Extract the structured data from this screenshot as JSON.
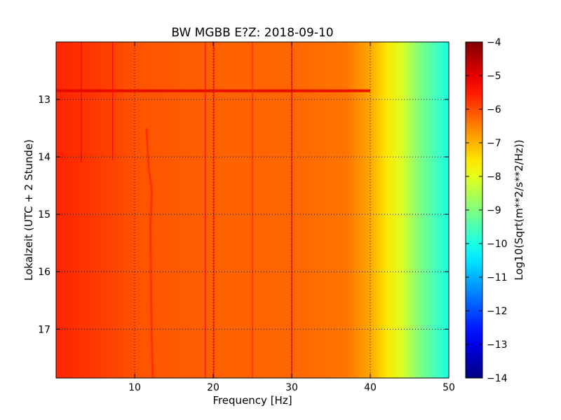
{
  "chart_data": {
    "type": "heatmap",
    "title": "BW MGBB E?Z: 2018-09-10",
    "xlabel": "Frequency [Hz]",
    "ylabel": "Lokalzeit (UTC + 2 Stunde)",
    "xlim": [
      0,
      50
    ],
    "ylim": [
      12.0,
      17.85
    ],
    "y_inverted": true,
    "x_ticks": [
      10,
      20,
      30,
      40,
      50
    ],
    "x_tick_labels": [
      "10",
      "20",
      "30",
      "40",
      "50"
    ],
    "y_ticks": [
      13,
      14,
      15,
      16,
      17
    ],
    "y_tick_labels": [
      "13",
      "14",
      "15",
      "16",
      "17"
    ],
    "grid": true,
    "colormap": "jet",
    "colorbar": {
      "label": "Log10(Sqrt(m**2/s**2/Hz))",
      "range": [
        -14,
        -4
      ],
      "ticks": [
        -4,
        -5,
        -6,
        -7,
        -8,
        -9,
        -10,
        -11,
        -12,
        -13,
        -14
      ],
      "tick_labels": [
        "−4",
        "−5",
        "−6",
        "−7",
        "−8",
        "−9",
        "−10",
        "−11",
        "−12",
        "−13",
        "−14"
      ]
    },
    "spectrum_profile": [
      {
        "freq": 0,
        "value": -5.6
      },
      {
        "freq": 5,
        "value": -5.8
      },
      {
        "freq": 10,
        "value": -6.05
      },
      {
        "freq": 20,
        "value": -6.2
      },
      {
        "freq": 30,
        "value": -6.25
      },
      {
        "freq": 37,
        "value": -6.4
      },
      {
        "freq": 40,
        "value": -6.9
      },
      {
        "freq": 42,
        "value": -7.5
      },
      {
        "freq": 44,
        "value": -8.1
      },
      {
        "freq": 46,
        "value": -8.9
      },
      {
        "freq": 48,
        "value": -9.5
      },
      {
        "freq": 50,
        "value": -10.0
      }
    ],
    "features": [
      {
        "kind": "horizontal-band",
        "time": 12.85,
        "value": -5.0
      },
      {
        "kind": "vertical-line",
        "freq": 3.2,
        "t_end": 14.1,
        "value": -5.2
      },
      {
        "kind": "vertical-line",
        "freq": 7.2,
        "t_end": 14.05,
        "value": -5.3
      },
      {
        "kind": "vertical-line",
        "freq": 19.0,
        "t_end": 17.85,
        "value": -5.4
      },
      {
        "kind": "vertical-line",
        "freq": 20.1,
        "t_end": 17.85,
        "value": -5.4
      },
      {
        "kind": "vertical-line",
        "freq": 25.0,
        "t_end": 17.85,
        "value": -5.6
      },
      {
        "kind": "vertical-line",
        "freq": 30.0,
        "t_end": 17.85,
        "value": -5.3
      },
      {
        "kind": "drifting-line",
        "points": [
          [
            11.5,
            13.5
          ],
          [
            11.8,
            14.2
          ],
          [
            12.2,
            14.6
          ],
          [
            12.0,
            15.2
          ],
          [
            12.1,
            16.5
          ],
          [
            12.3,
            17.85
          ]
        ],
        "value": -5.5
      }
    ]
  }
}
